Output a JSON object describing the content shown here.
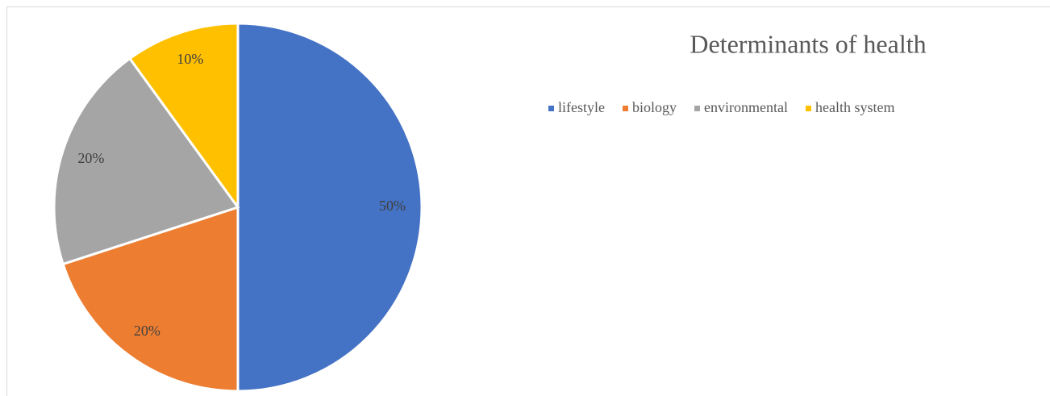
{
  "chart_data": {
    "type": "pie",
    "title": "Determinants of health",
    "categories": [
      "lifestyle",
      "biology",
      "environmental",
      "health system"
    ],
    "values": [
      50,
      20,
      20,
      10
    ],
    "value_labels": [
      "50%",
      "20%",
      "20%",
      "10%"
    ],
    "colors": [
      "#4472c4",
      "#ed7d31",
      "#a5a5a5",
      "#ffc000"
    ],
    "legend": "top"
  }
}
